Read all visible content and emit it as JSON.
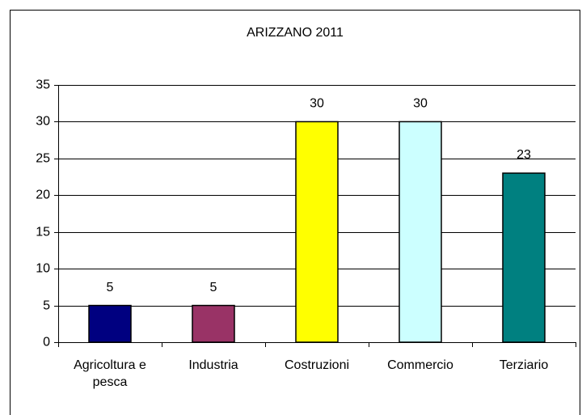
{
  "chart_data": {
    "type": "bar",
    "title": "ARIZZANO 2011",
    "categories": [
      "Agricoltura e pesca",
      "Industria",
      "Costruzioni",
      "Commercio",
      "Terziario"
    ],
    "values": [
      5,
      5,
      30,
      30,
      23
    ],
    "colors": [
      "#000080",
      "#993366",
      "#ffff00",
      "#ccffff",
      "#008080"
    ],
    "ylim": [
      0,
      35
    ],
    "yticks": [
      0,
      5,
      10,
      15,
      20,
      25,
      30,
      35
    ],
    "grid": true
  }
}
